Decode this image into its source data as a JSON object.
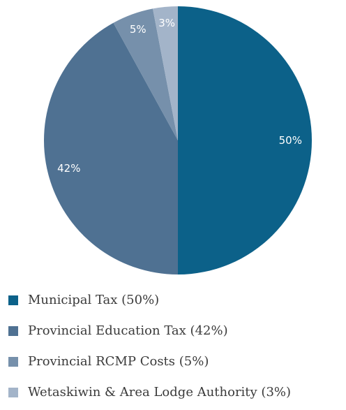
{
  "chart_data": {
    "type": "pie",
    "slices": [
      {
        "label": "Municipal Tax (50%)",
        "value": 50,
        "display": "50%",
        "color": "#0c6189"
      },
      {
        "label": "Provincial Education Tax (42%)",
        "value": 42,
        "display": "42%",
        "color": "#4f7192"
      },
      {
        "label": "Provincial RCMP Costs (5%)",
        "value": 5,
        "display": "5%",
        "color": "#7690ab"
      },
      {
        "label": "Wetaskiwin & Area Lodge Authority (3%)",
        "value": 3,
        "display": "3%",
        "color": "#a3b4c9"
      }
    ],
    "legend_position": "bottom-left"
  }
}
